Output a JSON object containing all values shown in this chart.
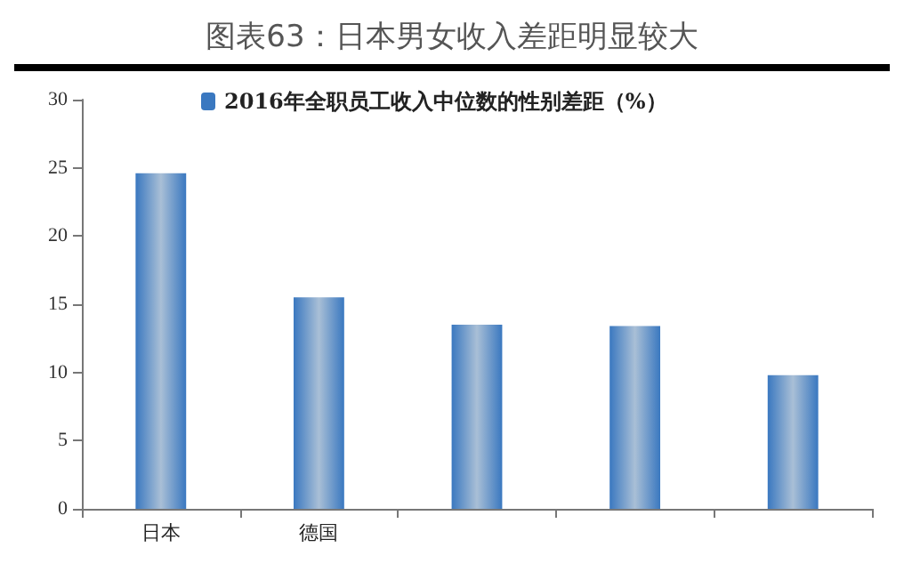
{
  "chart_data": {
    "type": "bar",
    "title": "图表63：日本男女收入差距明显较大",
    "categories": [
      "日本",
      "德国",
      null,
      null,
      null
    ],
    "series": [
      {
        "name": "2016年全职员工收入中位数的性别差距（%）",
        "color": "#3a78c0",
        "values": [
          24.6,
          15.5,
          13.5,
          13.4,
          9.8
        ]
      }
    ],
    "ylim": [
      0,
      30
    ],
    "yticks": [
      0,
      5,
      10,
      15,
      20,
      25,
      30
    ],
    "grid": false,
    "legend": "top"
  }
}
